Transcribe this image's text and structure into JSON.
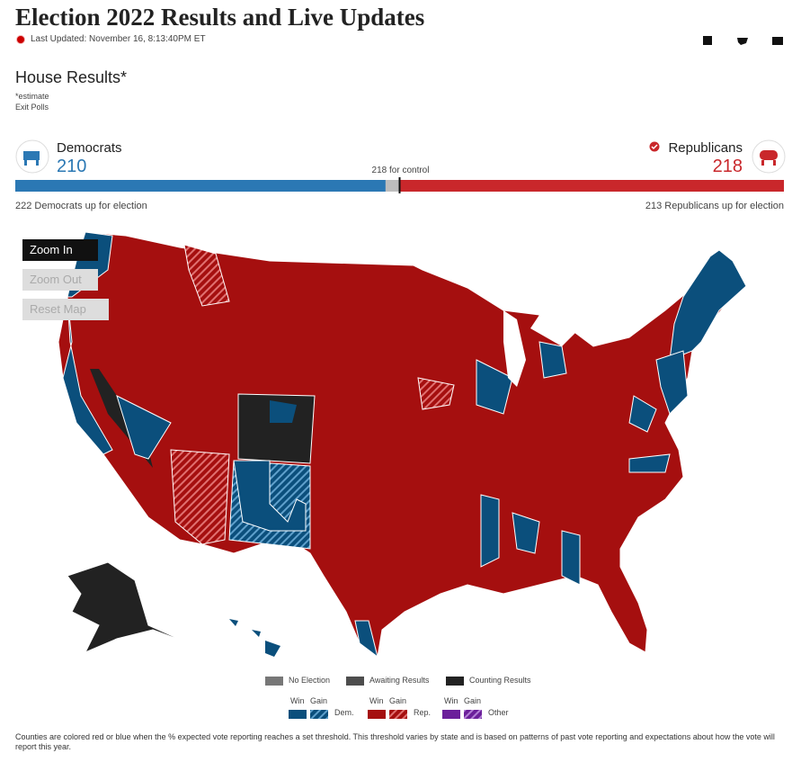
{
  "header": {
    "title": "Election 2022 Results and Live Updates",
    "last_updated": "Last Updated: November 16, 8:13:40PM ET"
  },
  "house": {
    "title": "House Results*",
    "note": "*estimate",
    "link": "Exit Polls"
  },
  "dem": {
    "name": "Democrats",
    "seats": 210,
    "up": "222 Democrats up for election",
    "color": "#2b78b4"
  },
  "rep": {
    "name": "Republicans",
    "seats": 218,
    "up": "213 Republicans up for election",
    "color": "#c9272b"
  },
  "control": {
    "value": 218,
    "label": "218 for control"
  },
  "map_controls": [
    "Zoom In",
    "Zoom Out",
    "Reset Map"
  ],
  "legend": {
    "status": [
      {
        "label": "No Election",
        "color": "#777777"
      },
      {
        "label": "Awaiting Results",
        "color": "#4d4d4d"
      },
      {
        "label": "Counting Results",
        "color": "#222222"
      }
    ],
    "parties": [
      {
        "name": "Dem.",
        "win": "Win",
        "gain": "Gain",
        "color": "#0b4f7c"
      },
      {
        "name": "Rep.",
        "win": "Win",
        "gain": "Gain",
        "color": "#a50f0f"
      },
      {
        "name": "Other",
        "win": "Win",
        "gain": "Gain",
        "color": "#6b1f9a"
      }
    ]
  },
  "footnote": "Counties are colored red or blue when the % expected vote reporting reaches a set threshold. This threshold varies by state and is based on patterns of past vote reporting and expectations about how the vote will report this year."
}
